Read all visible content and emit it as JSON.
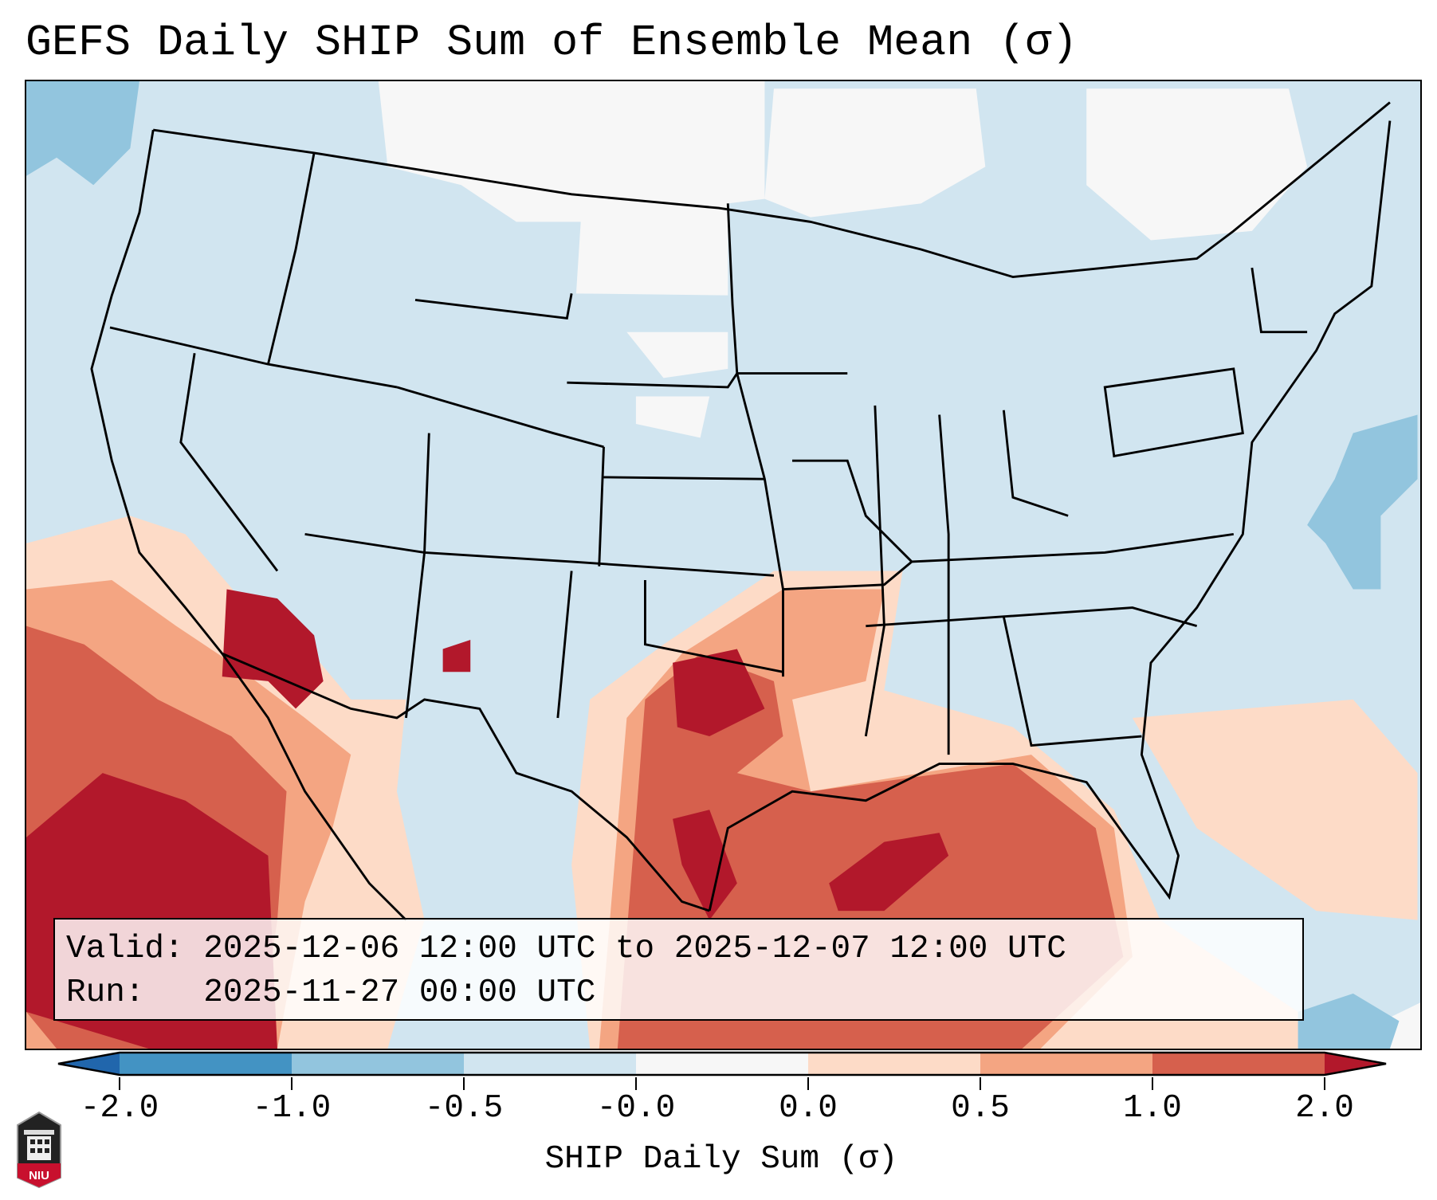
{
  "title": "GEFS Daily SHIP Sum of Ensemble Mean (σ)",
  "info_box": {
    "valid_line": "Valid: 2025-12-06 12:00 UTC to 2025-12-07 12:00 UTC",
    "run_line": "Run:   2025-11-27 00:00 UTC"
  },
  "colorbar": {
    "label": "SHIP Daily Sum (σ)",
    "ticks": [
      "-2.0",
      "-1.0",
      "-0.5",
      "-0.0",
      "0.0",
      "0.5",
      "1.0",
      "2.0"
    ],
    "colors": [
      "#4393c3",
      "#92c5de",
      "#d1e5f0",
      "#f7f7f7",
      "#fddbc7",
      "#f4a582",
      "#d6604d"
    ],
    "under_color": "#2166ac",
    "over_color": "#b2182b"
  },
  "logo": {
    "text": "NIU"
  }
}
